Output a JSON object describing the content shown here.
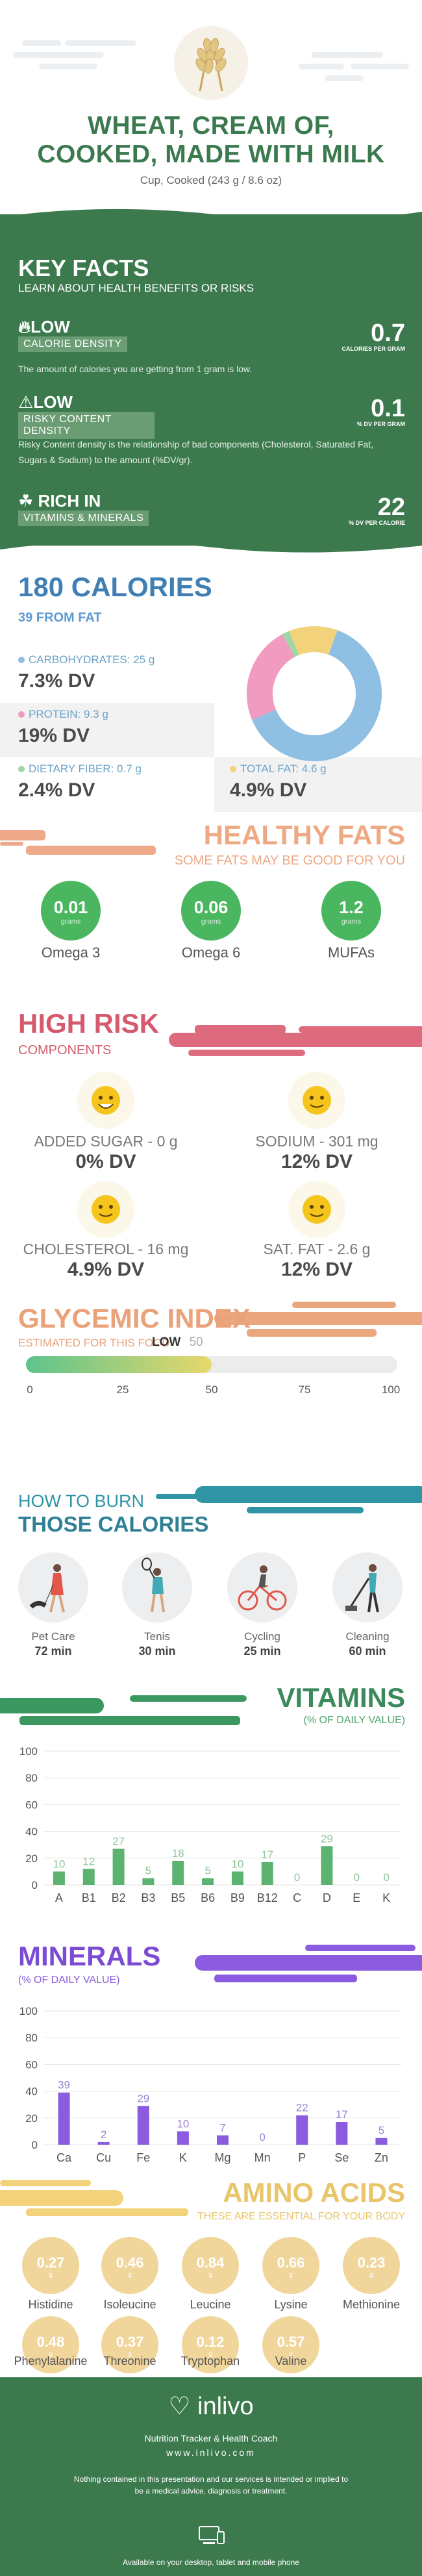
{
  "header": {
    "title_line1": "WHEAT, CREAM OF,",
    "title_line2": "COOKED, MADE WITH MILK",
    "serving": "Cup, Cooked (243 g / 8.6 oz)"
  },
  "key_facts": {
    "title": "KEY FACTS",
    "subtitle": "LEARN ABOUT HEALTH BENEFITS OR RISKS",
    "items": [
      {
        "level": "LOW",
        "label": "CALORIE DENSITY",
        "value": "0.7",
        "unit": "CALORIES PER GRAM",
        "description": "The amount of calories you are getting from 1 gram is low."
      },
      {
        "level": "LOW",
        "label": "RISKY CONTENT DENSITY",
        "value": "0.1",
        "unit": "% DV PER GRAM",
        "description": "Risky Content density is the relationship of bad components (Cholesterol, Saturated Fat, Sugars & Sodium) to the amount (%DV/gr)."
      },
      {
        "level": "RICH  IN",
        "label": "VITAMINS & MINERALS",
        "value": "22",
        "unit": "% DV PER CALORIE",
        "description": ""
      }
    ]
  },
  "calories": {
    "title": "180 CALORIES",
    "subtitle": "39 FROM FAT",
    "macros": [
      {
        "label": "CARBOHYDRATES: 25 g",
        "dv": "7.3% DV",
        "color": "#8fbfe3"
      },
      {
        "label": "PROTEIN: 9.3 g",
        "dv": "19% DV",
        "color": "#f29bc0"
      },
      {
        "label": "DIETARY FIBER: 0.7 g",
        "dv": "2.4% DV",
        "color": "#9ed6a6"
      },
      {
        "label": "TOTAL FAT: 4.6 g",
        "dv": "4.9% DV",
        "color": "#f3d27c"
      }
    ],
    "chart_data": {
      "type": "pie",
      "categories": [
        "Carbohydrates",
        "Protein",
        "Dietary Fiber",
        "Total Fat"
      ],
      "values": [
        25,
        9.3,
        0.7,
        4.6
      ],
      "colors": [
        "#8fbfe3",
        "#f29bc0",
        "#9ed6a6",
        "#f3d27c"
      ]
    }
  },
  "healthy_fats": {
    "title": "HEALTHY FATS",
    "subtitle": "SOME FATS MAY BE GOOD FOR YOU",
    "items": [
      {
        "value": "0.01",
        "unit": "grams",
        "name": "Omega 3"
      },
      {
        "value": "0.06",
        "unit": "grams",
        "name": "Omega 6"
      },
      {
        "value": "1.2",
        "unit": "grams",
        "name": "MUFAs"
      }
    ]
  },
  "high_risk": {
    "title": "HIGH RISK",
    "subtitle": "COMPONENTS",
    "items": [
      {
        "label": "ADDED SUGAR - 0 g",
        "dv": "0% DV"
      },
      {
        "label": "SODIUM - 301 mg",
        "dv": "12% DV"
      },
      {
        "label": "CHOLESTEROL - 16 mg",
        "dv": "4.9% DV"
      },
      {
        "label": "SAT. FAT - 2.6 g",
        "dv": "12% DV"
      }
    ]
  },
  "glycemic": {
    "title": "GLYCEMIC INDEX",
    "subtitle": "ESTIMATED FOR THIS FOOD",
    "level": "LOW",
    "value": "50",
    "value_num": 50,
    "ticks": [
      "0",
      "25",
      "50",
      "75",
      "100"
    ]
  },
  "burn": {
    "title_line1": "HOW TO BURN",
    "title_line2": "THOSE CALORIES",
    "items": [
      {
        "name": "Pet Care",
        "minutes": "72 min",
        "icon": "dog-walking-icon"
      },
      {
        "name": "Tenis",
        "minutes": "30 min",
        "icon": "tennis-icon"
      },
      {
        "name": "Cycling",
        "minutes": "25 min",
        "icon": "cycling-icon"
      },
      {
        "name": "Cleaning",
        "minutes": "60 min",
        "icon": "vacuum-icon"
      }
    ]
  },
  "vitamins": {
    "title": "VITAMINS",
    "subtitle": "(% OF DAILY VALUE)",
    "chart_data": {
      "type": "bar",
      "categories": [
        "A",
        "B1",
        "B2",
        "B3",
        "B5",
        "B6",
        "B9",
        "B12",
        "C",
        "D",
        "E",
        "K"
      ],
      "values": [
        10,
        12,
        27,
        5,
        18,
        5,
        10,
        17,
        0,
        29,
        0,
        0
      ],
      "ylim": [
        0,
        100
      ],
      "yticks": [
        "0",
        "20",
        "40",
        "60",
        "80",
        "100"
      ],
      "color": "#5cb270"
    }
  },
  "minerals": {
    "title": "MINERALS",
    "subtitle": "(% OF DAILY VALUE)",
    "chart_data": {
      "type": "bar",
      "categories": [
        "Ca",
        "Cu",
        "Fe",
        "K",
        "Mg",
        "Mn",
        "P",
        "Se",
        "Zn"
      ],
      "values": [
        39,
        2,
        29,
        10,
        7,
        0,
        22,
        17,
        5
      ],
      "ylim": [
        0,
        100
      ],
      "yticks": [
        "0",
        "20",
        "40",
        "60",
        "80",
        "100"
      ],
      "color": "#8b5be0"
    }
  },
  "amino_acids": {
    "title": "AMINO ACIDS",
    "subtitle": "THESE ARE ESSENTIAL FOR YOUR BODY",
    "items": [
      {
        "value": "0.27",
        "unit": "g",
        "name": "Histidine"
      },
      {
        "value": "0.46",
        "unit": "g",
        "name": "Isoleucine"
      },
      {
        "value": "0.84",
        "unit": "g",
        "name": "Leucine"
      },
      {
        "value": "0.66",
        "unit": "g",
        "name": "Lysine"
      },
      {
        "value": "0.23",
        "unit": "g",
        "name": "Methionine"
      },
      {
        "value": "0.48",
        "unit": "g",
        "name": "Phenylalanine"
      },
      {
        "value": "0.37",
        "unit": "g",
        "name": "Threonine"
      },
      {
        "value": "0.12",
        "unit": "g",
        "name": "Tryptophan"
      },
      {
        "value": "0.57",
        "unit": "g",
        "name": "Valine"
      }
    ]
  },
  "footer": {
    "brand": "inlivo",
    "tagline": "Nutrition Tracker & Health Coach",
    "site": "www.inlivo.com",
    "disclaimer": "Nothing contained in this presentation and our services is intended or implied to be a medical advice, diagnosis or treatment.",
    "availability": "Available on your desktop, tablet and mobile phone"
  }
}
